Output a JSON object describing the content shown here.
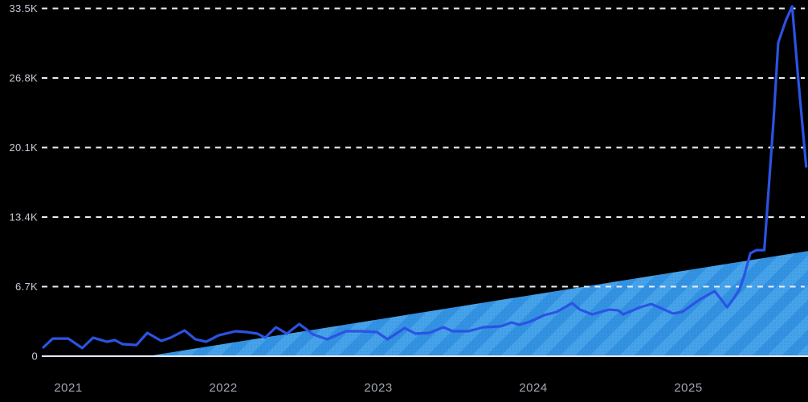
{
  "colors": {
    "background": "#000000",
    "line": "#2b53e3",
    "area_base": "#3392e2",
    "area_stripe": "#46a3ea",
    "area_dot": "#1e6cb8",
    "grid": "#e8ecf6",
    "baseline": "#e4e8f2",
    "y_label": "#c5cad4",
    "x_label": "#a3a8b2"
  },
  "chart_data": {
    "type": "area",
    "title": "",
    "xlabel": "",
    "ylabel": "",
    "grid": "dashed-horizontal",
    "legend": "none",
    "ylim": [
      0,
      33500
    ],
    "xlim": [
      2020.83,
      2025.78
    ],
    "y_ticks": [
      {
        "value": 0,
        "label": "0"
      },
      {
        "value": 6700,
        "label": "6.7K"
      },
      {
        "value": 13400,
        "label": "13.4K"
      },
      {
        "value": 20100,
        "label": "20.1K"
      },
      {
        "value": 26800,
        "label": "26.8K"
      },
      {
        "value": 33500,
        "label": "33.5K"
      }
    ],
    "x_ticks": [
      {
        "value": 2021,
        "label": "2021"
      },
      {
        "value": 2022,
        "label": "2022"
      },
      {
        "value": 2023,
        "label": "2023"
      },
      {
        "value": 2024,
        "label": "2024"
      },
      {
        "value": 2025,
        "label": "2025"
      }
    ],
    "series": [
      {
        "name": "linear-trend-area",
        "type": "area",
        "hatched": true,
        "points": [
          [
            2021.51,
            0
          ],
          [
            2025.78,
            10150
          ]
        ]
      },
      {
        "name": "main-line",
        "type": "line",
        "points": [
          [
            2020.84,
            850
          ],
          [
            2020.9,
            1700
          ],
          [
            2021.0,
            1700
          ],
          [
            2021.09,
            780
          ],
          [
            2021.16,
            1780
          ],
          [
            2021.25,
            1390
          ],
          [
            2021.3,
            1550
          ],
          [
            2021.35,
            1160
          ],
          [
            2021.44,
            1080
          ],
          [
            2021.51,
            2250
          ],
          [
            2021.6,
            1470
          ],
          [
            2021.66,
            1780
          ],
          [
            2021.75,
            2480
          ],
          [
            2021.82,
            1630
          ],
          [
            2021.89,
            1390
          ],
          [
            2021.97,
            2010
          ],
          [
            2022.08,
            2400
          ],
          [
            2022.15,
            2320
          ],
          [
            2022.22,
            2170
          ],
          [
            2022.27,
            1780
          ],
          [
            2022.34,
            2790
          ],
          [
            2022.41,
            2170
          ],
          [
            2022.49,
            3100
          ],
          [
            2022.58,
            2090
          ],
          [
            2022.67,
            1630
          ],
          [
            2022.79,
            2400
          ],
          [
            2022.89,
            2400
          ],
          [
            2022.99,
            2320
          ],
          [
            2023.06,
            1630
          ],
          [
            2023.17,
            2710
          ],
          [
            2023.24,
            2170
          ],
          [
            2023.33,
            2250
          ],
          [
            2023.42,
            2790
          ],
          [
            2023.48,
            2400
          ],
          [
            2023.58,
            2400
          ],
          [
            2023.68,
            2790
          ],
          [
            2023.79,
            2870
          ],
          [
            2023.86,
            3250
          ],
          [
            2023.91,
            3020
          ],
          [
            2023.98,
            3330
          ],
          [
            2024.07,
            3950
          ],
          [
            2024.15,
            4260
          ],
          [
            2024.25,
            5110
          ],
          [
            2024.3,
            4490
          ],
          [
            2024.38,
            4030
          ],
          [
            2024.49,
            4490
          ],
          [
            2024.55,
            4410
          ],
          [
            2024.58,
            4030
          ],
          [
            2024.69,
            4720
          ],
          [
            2024.76,
            5030
          ],
          [
            2024.81,
            4720
          ],
          [
            2024.9,
            4110
          ],
          [
            2024.96,
            4260
          ],
          [
            2025.07,
            5420
          ],
          [
            2025.17,
            6270
          ],
          [
            2025.25,
            4720
          ],
          [
            2025.29,
            5500
          ],
          [
            2025.33,
            6430
          ],
          [
            2025.36,
            7740
          ],
          [
            2025.4,
            9910
          ],
          [
            2025.44,
            10220
          ],
          [
            2025.49,
            10220
          ],
          [
            2025.55,
            22700
          ],
          [
            2025.58,
            30200
          ],
          [
            2025.63,
            32380
          ],
          [
            2025.67,
            33700
          ],
          [
            2025.71,
            26570
          ],
          [
            2025.76,
            18280
          ]
        ]
      }
    ]
  }
}
